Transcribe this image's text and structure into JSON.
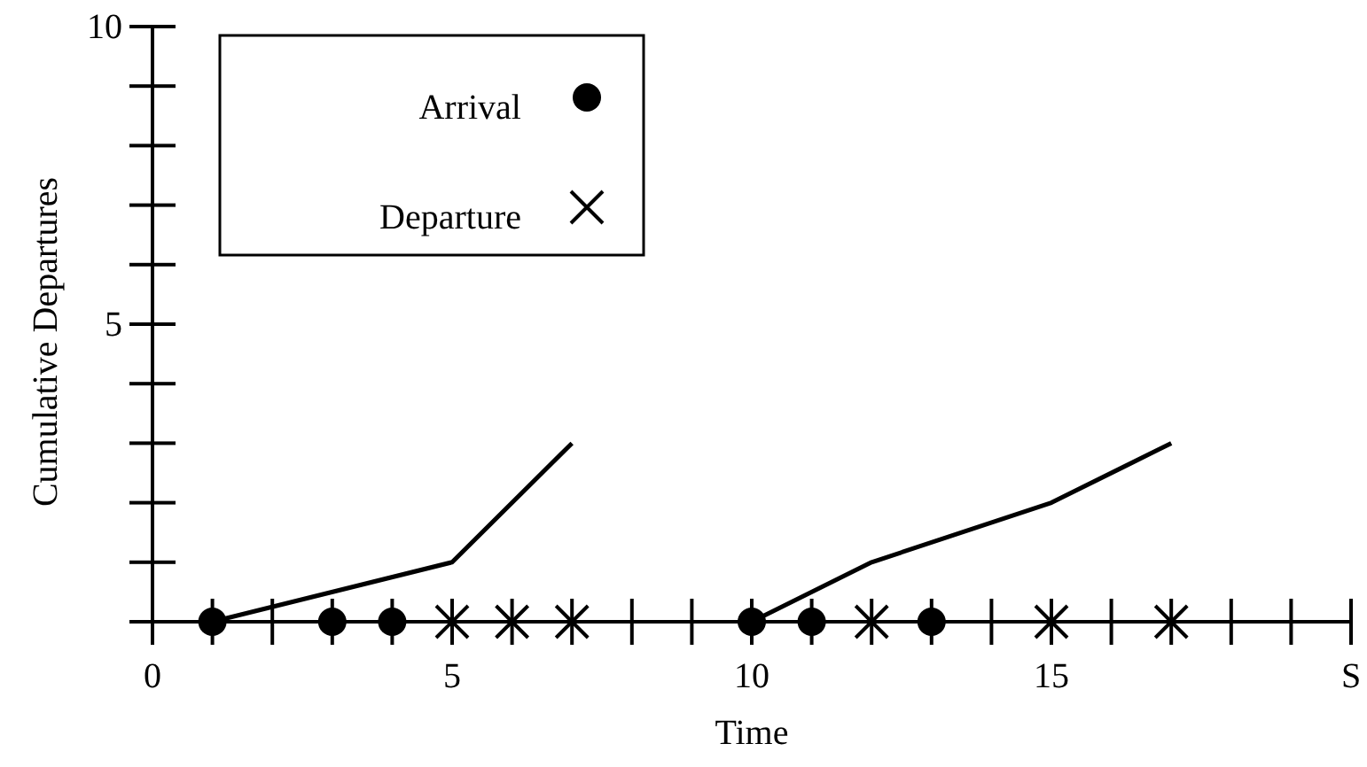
{
  "chart_data": {
    "type": "line",
    "xlabel": "Time",
    "ylabel": "Cumulative Departures",
    "xlim": [
      0,
      20
    ],
    "ylim": [
      0,
      10
    ],
    "xticks": [
      0,
      {
        "value": 1,
        "label": null
      },
      {
        "value": 2,
        "label": null
      },
      {
        "value": 3,
        "label": null
      },
      {
        "value": 4,
        "label": null
      },
      5,
      {
        "value": 6,
        "label": null
      },
      {
        "value": 7,
        "label": null
      },
      {
        "value": 8,
        "label": null
      },
      {
        "value": 9,
        "label": null
      },
      10,
      {
        "value": 11,
        "label": null
      },
      {
        "value": 12,
        "label": null
      },
      {
        "value": 13,
        "label": null
      },
      {
        "value": 14,
        "label": null
      },
      15,
      {
        "value": 16,
        "label": null
      },
      {
        "value": 17,
        "label": null
      },
      {
        "value": 18,
        "label": null
      },
      {
        "value": 19,
        "label": null
      },
      {
        "value": 20,
        "label": "S"
      }
    ],
    "yticks": [
      {
        "value": 0,
        "label": null
      },
      {
        "value": 1,
        "label": null
      },
      {
        "value": 2,
        "label": null
      },
      {
        "value": 3,
        "label": null
      },
      {
        "value": 4,
        "label": null
      },
      5,
      {
        "value": 6,
        "label": null
      },
      {
        "value": 7,
        "label": null
      },
      {
        "value": 8,
        "label": null
      },
      {
        "value": 9,
        "label": null
      },
      10
    ],
    "legend": "top left",
    "grid": false,
    "series": [
      {
        "color": "#000000",
        "x": [
          1,
          5,
          7
        ],
        "values": [
          0,
          1,
          3
        ],
        "marker": "none",
        "line_style": "solid"
      },
      {
        "color": "#000000",
        "x": [
          10,
          12,
          15,
          17
        ],
        "values": [
          0,
          1,
          2,
          3
        ],
        "marker": "none",
        "line_style": "solid"
      },
      {
        "type": "scatter",
        "name": "Arrival",
        "color": "#000000",
        "marker": "circle",
        "x": [
          1,
          3,
          4,
          10,
          11,
          13
        ],
        "values": [
          0,
          0,
          0,
          0,
          0,
          0
        ]
      },
      {
        "type": "scatter",
        "name": "Departure",
        "color": "#000000",
        "marker": "cross",
        "x": [
          5,
          6,
          7,
          12,
          15,
          17
        ],
        "values": [
          0,
          0,
          0,
          0,
          0,
          0
        ]
      }
    ]
  }
}
